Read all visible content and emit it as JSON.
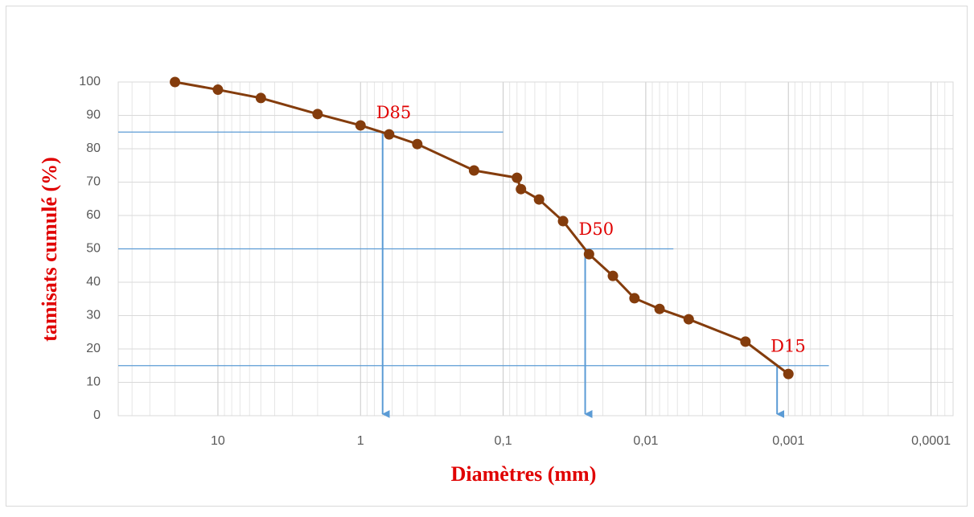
{
  "chart_data": {
    "type": "line",
    "x_label": "Diamètres (mm)",
    "y_label": "tamisats cumulé (%)",
    "x_scale": "log",
    "xlim": [
      50,
      7e-05
    ],
    "xticks": [
      10,
      1,
      {
        "value": 0.1,
        "label": "0,1"
      },
      {
        "value": 0.01,
        "label": "0,01"
      },
      {
        "value": 0.001,
        "label": "0,001"
      },
      {
        "value": 0.0001,
        "label": "0,0001"
      }
    ],
    "ylim": [
      0,
      100
    ],
    "yticks": [
      0,
      10,
      20,
      30,
      40,
      50,
      60,
      70,
      80,
      90,
      100
    ],
    "grid": true,
    "minor_grid": true,
    "series": [
      {
        "color": "#843c0c",
        "x": [
          20,
          10,
          5,
          2,
          1,
          0.63,
          0.4,
          0.16,
          0.08,
          0.075,
          0.056,
          0.038,
          0.025,
          0.017,
          0.012,
          0.008,
          0.005,
          0.002,
          0.001
        ],
        "values": [
          100,
          97.7,
          95.2,
          90.4,
          87.0,
          84.3,
          81.4,
          73.5,
          71.3,
          67.9,
          64.8,
          58.3,
          48.4,
          41.9,
          35.2,
          32.0,
          28.9,
          22.2,
          12.5
        ]
      }
    ],
    "reference_lines": [
      {
        "label": "D85",
        "y": 85,
        "x": 0.7,
        "x_end": 0.1
      },
      {
        "label": "D50",
        "y": 50,
        "x": 0.0266,
        "x_end": 0.0064
      },
      {
        "label": "D15",
        "y": 15,
        "x": 0.0012,
        "x_end": 0.00052
      }
    ],
    "reference_color": "#5b9bd5",
    "label_color": "#e00000"
  }
}
